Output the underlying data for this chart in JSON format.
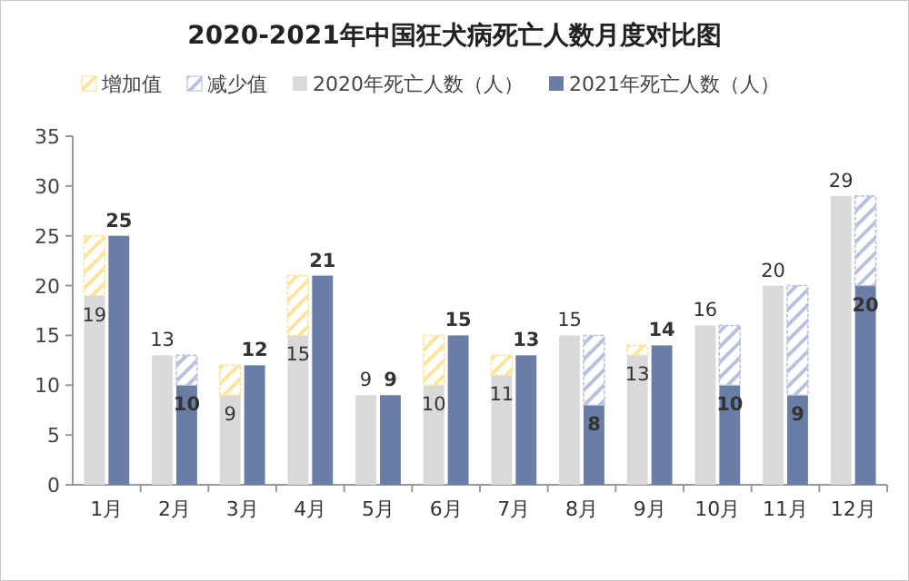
{
  "chart_data": {
    "type": "bar",
    "title": "2020-2021年中国狂犬病死亡人数月度对比图",
    "legend": "top",
    "ylim": [
      0,
      35
    ],
    "yticks": [
      0,
      5,
      10,
      15,
      20,
      25,
      30,
      35
    ],
    "grid": false,
    "categories": [
      "1月",
      "2月",
      "3月",
      "4月",
      "5月",
      "6月",
      "7月",
      "8月",
      "9月",
      "10月",
      "11月",
      "12月"
    ],
    "series": [
      {
        "name": "增加值",
        "color": "#fce49a",
        "base": [
          19,
          null,
          9,
          15,
          null,
          10,
          11,
          null,
          13,
          null,
          null,
          null
        ],
        "values": [
          6,
          null,
          3,
          6,
          null,
          5,
          2,
          null,
          1,
          null,
          null,
          null
        ]
      },
      {
        "name": "减少值",
        "color": "#b8c2dc",
        "base": [
          null,
          10,
          null,
          null,
          null,
          null,
          null,
          8,
          null,
          10,
          9,
          20
        ],
        "values": [
          null,
          3,
          null,
          null,
          null,
          null,
          null,
          7,
          null,
          6,
          11,
          9
        ]
      },
      {
        "name": "2020年死亡人数（人）",
        "color": "#d9d9d9",
        "values": [
          19,
          13,
          9,
          15,
          9,
          10,
          11,
          15,
          13,
          16,
          20,
          29
        ],
        "value_labels": [
          "19",
          "13",
          "9",
          "15",
          "9",
          "10",
          "11",
          "15",
          "13",
          "16",
          "20",
          "29"
        ]
      },
      {
        "name": "2021年死亡人数（人）",
        "color": "#6a7da5",
        "values": [
          25,
          10,
          12,
          21,
          9,
          15,
          13,
          8,
          14,
          10,
          9,
          20
        ],
        "value_labels": [
          "25",
          "10",
          "12",
          "21",
          "9",
          "15",
          "13",
          "8",
          "14",
          "10",
          "9",
          "20"
        ]
      }
    ]
  }
}
